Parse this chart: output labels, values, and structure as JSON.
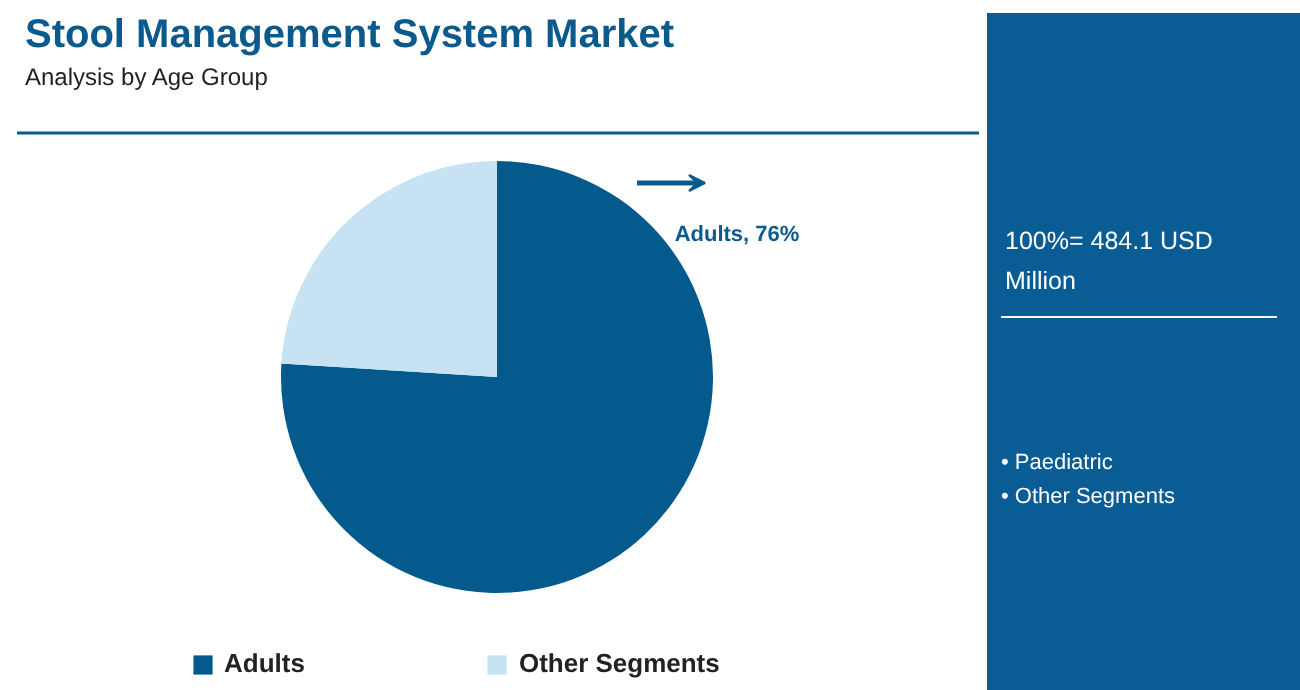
{
  "chart_data": {
    "type": "pie",
    "title": "Stool Management System Market",
    "subtitle": "Analysis by Age Group",
    "categories": [
      "Adults",
      "Other Segments"
    ],
    "values": [
      76,
      24
    ],
    "colors": [
      "#045a8d",
      "#c6e2f3"
    ],
    "value_labels": [
      "Adults, 76%",
      null
    ],
    "legend": "bottom",
    "annotations": [
      "100%= 484.1 USD Million",
      "• Paediatric",
      "• Other Segments"
    ]
  }
}
